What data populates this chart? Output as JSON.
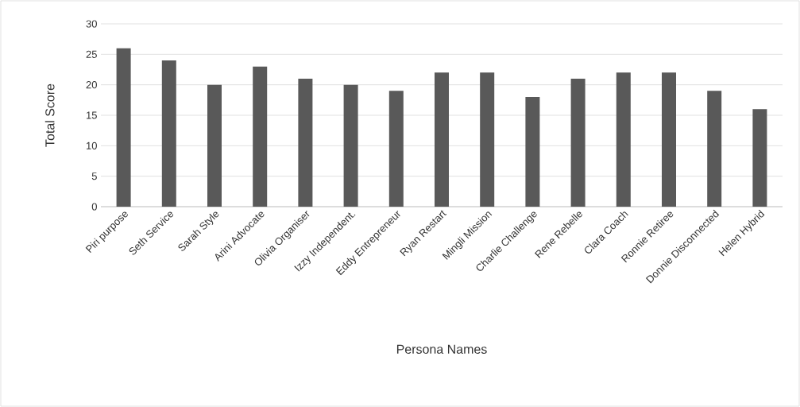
{
  "chart_data": {
    "type": "bar",
    "xlabel": "Persona Names",
    "ylabel": "Total Score",
    "categories": [
      "Piri purpose",
      "Seth Service",
      "Sarah Style",
      "Arini Advocate",
      "Olivia Organiser",
      "Izzy Independent.",
      "Eddy Entrepreneur",
      "Ryan Restart",
      "Mingli Mission",
      "Charlie Challenge",
      "Rene Rebelle",
      "Clara Coach",
      "Ronnie Retiree",
      "Donnie Disconnected",
      "Helen Hybrid"
    ],
    "values": [
      26,
      24,
      20,
      23,
      21,
      20,
      19,
      22,
      22,
      18,
      21,
      22,
      22,
      19,
      16
    ],
    "color": "#595959",
    "ylim": [
      0,
      30
    ],
    "yticks": [
      0,
      5,
      10,
      15,
      20,
      25,
      30
    ],
    "grid": "y"
  }
}
